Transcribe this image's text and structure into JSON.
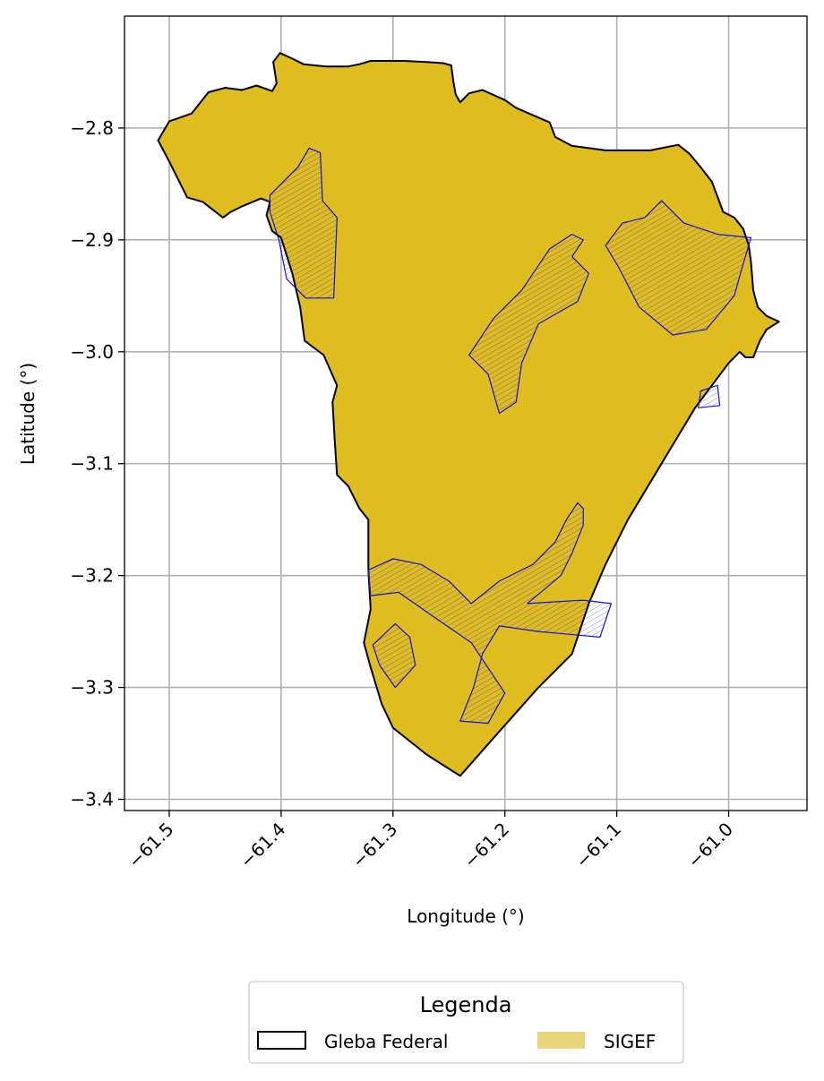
{
  "chart_data": {
    "type": "map",
    "xlabel": "Longitude (°)",
    "ylabel": "Latitude (°)",
    "xlim": [
      -61.54,
      -60.93
    ],
    "ylim": [
      -3.41,
      -2.7
    ],
    "xticks": [
      -61.5,
      -61.4,
      -61.3,
      -61.2,
      -61.1,
      -61.0
    ],
    "xtick_labels": [
      "−61.5",
      "−61.4",
      "−61.3",
      "−61.2",
      "−61.1",
      "−61.0"
    ],
    "yticks": [
      -2.8,
      -2.9,
      -3.0,
      -3.1,
      -3.2,
      -3.3,
      -3.4
    ],
    "ytick_labels": [
      "−2.8",
      "−2.9",
      "−3.0",
      "−3.1",
      "−3.2",
      "−3.3",
      "−3.4"
    ],
    "grid": true,
    "legend": {
      "title": "Legenda",
      "placement": "bottom-center",
      "items": [
        {
          "label": "Gleba Federal",
          "style": "outline",
          "color": "#000000"
        },
        {
          "label": "SIGEF",
          "style": "fill",
          "color": "#e8d67a"
        }
      ]
    },
    "colors": {
      "gleba_fill": "#dfbd1f",
      "gleba_edge": "#000000",
      "parcel_edge": "#1010ee",
      "grid": "#b0b0b0"
    },
    "gleba_boundary": [
      [
        -61.51,
        -2.811
      ],
      [
        -61.5,
        -2.794
      ],
      [
        -61.48,
        -2.787
      ],
      [
        -61.465,
        -2.768
      ],
      [
        -61.45,
        -2.764
      ],
      [
        -61.435,
        -2.766
      ],
      [
        -61.422,
        -2.762
      ],
      [
        -61.408,
        -2.767
      ],
      [
        -61.404,
        -2.76
      ],
      [
        -61.407,
        -2.741
      ],
      [
        -61.401,
        -2.733
      ],
      [
        -61.39,
        -2.738
      ],
      [
        -61.38,
        -2.743
      ],
      [
        -61.36,
        -2.745
      ],
      [
        -61.34,
        -2.745
      ],
      [
        -61.33,
        -2.743
      ],
      [
        -61.32,
        -2.74
      ],
      [
        -61.29,
        -2.74
      ],
      [
        -61.27,
        -2.741
      ],
      [
        -61.255,
        -2.742
      ],
      [
        -61.248,
        -2.744
      ],
      [
        -61.246,
        -2.759
      ],
      [
        -61.244,
        -2.77
      ],
      [
        -61.24,
        -2.777
      ],
      [
        -61.232,
        -2.769
      ],
      [
        -61.22,
        -2.766
      ],
      [
        -61.2,
        -2.775
      ],
      [
        -61.19,
        -2.782
      ],
      [
        -61.16,
        -2.795
      ],
      [
        -61.155,
        -2.808
      ],
      [
        -61.14,
        -2.816
      ],
      [
        -61.11,
        -2.82
      ],
      [
        -61.07,
        -2.82
      ],
      [
        -61.045,
        -2.815
      ],
      [
        -61.035,
        -2.823
      ],
      [
        -61.025,
        -2.835
      ],
      [
        -61.015,
        -2.848
      ],
      [
        -61.009,
        -2.864
      ],
      [
        -61.005,
        -2.875
      ],
      [
        -60.995,
        -2.88
      ],
      [
        -60.987,
        -2.89
      ],
      [
        -60.982,
        -2.905
      ],
      [
        -60.98,
        -2.92
      ],
      [
        -60.978,
        -2.945
      ],
      [
        -60.974,
        -2.96
      ],
      [
        -60.966,
        -2.968
      ],
      [
        -60.955,
        -2.973
      ],
      [
        -60.966,
        -2.98
      ],
      [
        -60.972,
        -2.99
      ],
      [
        -60.978,
        -3.005
      ],
      [
        -60.985,
        -3.005
      ],
      [
        -60.99,
        -3.0
      ],
      [
        -61.0,
        -3.01
      ],
      [
        -61.03,
        -3.05
      ],
      [
        -61.06,
        -3.1
      ],
      [
        -61.09,
        -3.15
      ],
      [
        -61.11,
        -3.19
      ],
      [
        -61.125,
        -3.225
      ],
      [
        -61.14,
        -3.27
      ],
      [
        -61.17,
        -3.3
      ],
      [
        -61.21,
        -3.345
      ],
      [
        -61.24,
        -3.379
      ],
      [
        -61.27,
        -3.36
      ],
      [
        -61.3,
        -3.336
      ],
      [
        -61.31,
        -3.315
      ],
      [
        -61.32,
        -3.282
      ],
      [
        -61.326,
        -3.26
      ],
      [
        -61.32,
        -3.23
      ],
      [
        -61.322,
        -3.195
      ],
      [
        -61.322,
        -3.15
      ],
      [
        -61.33,
        -3.14
      ],
      [
        -61.34,
        -3.12
      ],
      [
        -61.35,
        -3.11
      ],
      [
        -61.352,
        -3.08
      ],
      [
        -61.354,
        -3.045
      ],
      [
        -61.35,
        -3.03
      ],
      [
        -61.362,
        -3.003
      ],
      [
        -61.37,
        -2.997
      ],
      [
        -61.379,
        -2.99
      ],
      [
        -61.383,
        -2.96
      ],
      [
        -61.39,
        -2.93
      ],
      [
        -61.4,
        -2.898
      ],
      [
        -61.408,
        -2.892
      ],
      [
        -61.413,
        -2.878
      ],
      [
        -61.41,
        -2.866
      ],
      [
        -61.418,
        -2.863
      ],
      [
        -61.435,
        -2.87
      ],
      [
        -61.445,
        -2.875
      ],
      [
        -61.452,
        -2.88
      ],
      [
        -61.47,
        -2.866
      ],
      [
        -61.484,
        -2.862
      ],
      [
        -61.5,
        -2.83
      ],
      [
        -61.51,
        -2.811
      ]
    ],
    "sigef_parcels": [
      {
        "group": "northwest",
        "outline": [
          [
            -61.41,
            -2.86
          ],
          [
            -61.385,
            -2.835
          ],
          [
            -61.375,
            -2.818
          ],
          [
            -61.365,
            -2.822
          ],
          [
            -61.363,
            -2.865
          ],
          [
            -61.35,
            -2.88
          ],
          [
            -61.353,
            -2.952
          ],
          [
            -61.378,
            -2.952
          ],
          [
            -61.395,
            -2.935
          ],
          [
            -61.402,
            -2.9
          ],
          [
            -61.41,
            -2.875
          ]
        ]
      },
      {
        "group": "central",
        "outline": [
          [
            -61.232,
            -3.003
          ],
          [
            -61.21,
            -2.97
          ],
          [
            -61.185,
            -2.945
          ],
          [
            -61.16,
            -2.908
          ],
          [
            -61.14,
            -2.895
          ],
          [
            -61.13,
            -2.9
          ],
          [
            -61.14,
            -2.915
          ],
          [
            -61.125,
            -2.93
          ],
          [
            -61.135,
            -2.955
          ],
          [
            -61.17,
            -2.975
          ],
          [
            -61.185,
            -3.01
          ],
          [
            -61.19,
            -3.045
          ],
          [
            -61.205,
            -3.055
          ],
          [
            -61.215,
            -3.02
          ]
        ]
      },
      {
        "group": "east",
        "outline": [
          [
            -61.11,
            -2.905
          ],
          [
            -61.095,
            -2.885
          ],
          [
            -61.075,
            -2.88
          ],
          [
            -61.06,
            -2.865
          ],
          [
            -61.04,
            -2.885
          ],
          [
            -61.01,
            -2.895
          ],
          [
            -60.98,
            -2.898
          ],
          [
            -60.988,
            -2.925
          ],
          [
            -60.995,
            -2.95
          ],
          [
            -61.02,
            -2.98
          ],
          [
            -61.05,
            -2.985
          ],
          [
            -61.08,
            -2.96
          ],
          [
            -61.098,
            -2.925
          ]
        ]
      },
      {
        "group": "east-strips",
        "outline": [
          [
            -61.025,
            -3.035
          ],
          [
            -61.01,
            -3.03
          ],
          [
            -61.008,
            -3.048
          ],
          [
            -61.027,
            -3.05
          ]
        ]
      },
      {
        "group": "south",
        "outline": [
          [
            -61.322,
            -3.195
          ],
          [
            -61.3,
            -3.185
          ],
          [
            -61.275,
            -3.19
          ],
          [
            -61.25,
            -3.205
          ],
          [
            -61.23,
            -3.225
          ],
          [
            -61.205,
            -3.205
          ],
          [
            -61.175,
            -3.19
          ],
          [
            -61.155,
            -3.17
          ],
          [
            -61.145,
            -3.15
          ],
          [
            -61.135,
            -3.135
          ],
          [
            -61.13,
            -3.14
          ],
          [
            -61.13,
            -3.155
          ],
          [
            -61.14,
            -3.18
          ],
          [
            -61.15,
            -3.2
          ],
          [
            -61.18,
            -3.225
          ],
          [
            -61.13,
            -3.222
          ],
          [
            -61.105,
            -3.225
          ],
          [
            -61.115,
            -3.255
          ],
          [
            -61.17,
            -3.25
          ],
          [
            -61.205,
            -3.245
          ],
          [
            -61.22,
            -3.27
          ],
          [
            -61.228,
            -3.3
          ],
          [
            -61.24,
            -3.33
          ],
          [
            -61.215,
            -3.332
          ],
          [
            -61.2,
            -3.305
          ],
          [
            -61.23,
            -3.26
          ],
          [
            -61.262,
            -3.238
          ],
          [
            -61.295,
            -3.215
          ],
          [
            -61.32,
            -3.218
          ]
        ]
      },
      {
        "group": "south-west",
        "outline": [
          [
            -61.318,
            -3.262
          ],
          [
            -61.298,
            -3.243
          ],
          [
            -61.285,
            -3.255
          ],
          [
            -61.28,
            -3.28
          ],
          [
            -61.298,
            -3.3
          ],
          [
            -61.312,
            -3.28
          ]
        ]
      }
    ]
  }
}
